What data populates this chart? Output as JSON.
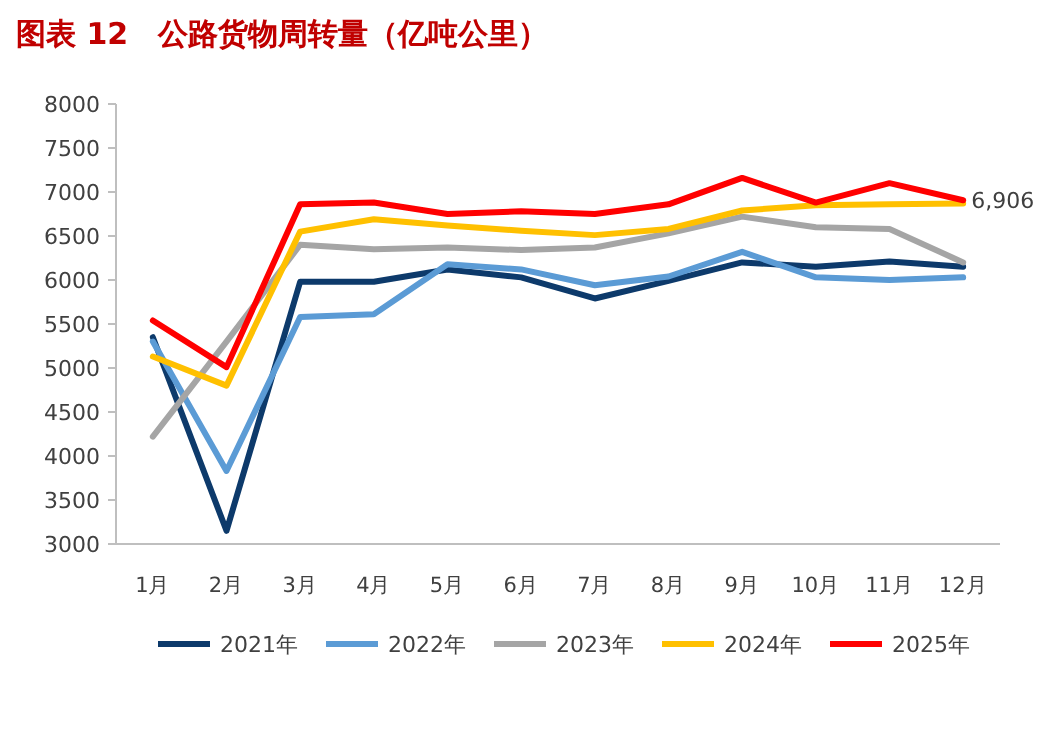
{
  "chart_data": {
    "type": "line",
    "title": "图表 12　公路货物周转量（亿吨公里）",
    "categories": [
      "1月",
      "2月",
      "3月",
      "4月",
      "5月",
      "6月",
      "7月",
      "8月",
      "9月",
      "10月",
      "11月",
      "12月"
    ],
    "series": [
      {
        "name": "2021年",
        "color": "#0d3a6b",
        "values": [
          5350,
          3150,
          5980,
          5980,
          6120,
          6030,
          5790,
          5990,
          6200,
          6150,
          6210,
          6150
        ]
      },
      {
        "name": "2022年",
        "color": "#5b9bd5",
        "values": [
          5300,
          3830,
          5580,
          5610,
          6180,
          6120,
          5940,
          6040,
          6320,
          6030,
          6000,
          6030
        ]
      },
      {
        "name": "2023年",
        "color": "#a5a5a5",
        "values": [
          4220,
          5300,
          6400,
          6350,
          6370,
          6340,
          6370,
          6530,
          6720,
          6600,
          6580,
          6200
        ]
      },
      {
        "name": "2024年",
        "color": "#ffc000",
        "values": [
          5130,
          4800,
          6550,
          6690,
          6620,
          6560,
          6510,
          6580,
          6790,
          6850,
          6860,
          6870
        ]
      },
      {
        "name": "2025年",
        "color": "#ff0000",
        "values": [
          5540,
          5010,
          6860,
          6880,
          6750,
          6780,
          6750,
          6860,
          7160,
          6880,
          7100,
          6906
        ],
        "value_labels": [
          null,
          null,
          null,
          null,
          null,
          null,
          null,
          null,
          null,
          null,
          null,
          "6,906"
        ]
      }
    ],
    "ylim": [
      3000,
      8000
    ],
    "yticks": [
      3000,
      3500,
      4000,
      4500,
      5000,
      5500,
      6000,
      6500,
      7000,
      7500,
      8000
    ],
    "grid": false,
    "legend": "bottom",
    "marker": "none",
    "line_style": "solid"
  }
}
